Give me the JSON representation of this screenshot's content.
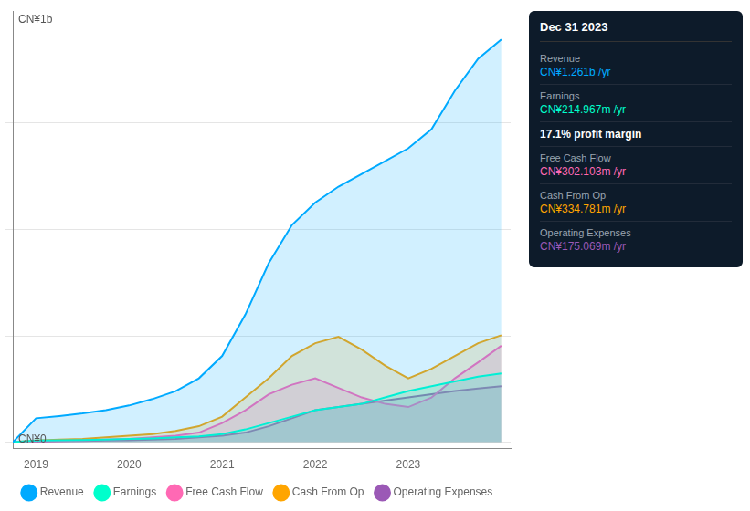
{
  "chart_data": {
    "type": "area",
    "x": [
      2018.75,
      2019.0,
      2019.25,
      2019.5,
      2019.75,
      2020.0,
      2020.25,
      2020.5,
      2020.75,
      2021.0,
      2021.25,
      2021.5,
      2021.75,
      2022.0,
      2022.25,
      2022.5,
      2022.75,
      2023.0,
      2023.25,
      2023.5,
      2023.75,
      2024.0
    ],
    "series": [
      {
        "name": "Revenue",
        "color": "#00aaff",
        "values": [
          0.0,
          0.075,
          0.082,
          0.09,
          0.1,
          0.115,
          0.135,
          0.16,
          0.2,
          0.27,
          0.4,
          0.56,
          0.68,
          0.75,
          0.8,
          0.84,
          0.88,
          0.92,
          0.98,
          1.1,
          1.2,
          1.261
        ]
      },
      {
        "name": "Earnings",
        "color": "#00ffcc",
        "values": [
          0.0,
          0.005,
          0.006,
          0.007,
          0.008,
          0.01,
          0.012,
          0.015,
          0.018,
          0.025,
          0.04,
          0.06,
          0.08,
          0.1,
          0.11,
          0.12,
          0.14,
          0.16,
          0.175,
          0.19,
          0.205,
          0.215
        ]
      },
      {
        "name": "Free Cash Flow",
        "color": "#ff69b4",
        "values": [
          0.0,
          0.003,
          0.004,
          0.005,
          0.008,
          0.01,
          0.015,
          0.02,
          0.03,
          0.06,
          0.1,
          0.15,
          0.18,
          0.2,
          0.17,
          0.14,
          0.12,
          0.11,
          0.14,
          0.2,
          0.25,
          0.302
        ]
      },
      {
        "name": "Cash From Op",
        "color": "#ffa500",
        "values": [
          0.0,
          0.005,
          0.008,
          0.01,
          0.015,
          0.02,
          0.025,
          0.035,
          0.05,
          0.08,
          0.14,
          0.2,
          0.27,
          0.31,
          0.33,
          0.29,
          0.24,
          0.2,
          0.23,
          0.27,
          0.31,
          0.335
        ]
      },
      {
        "name": "Operating Expenses",
        "color": "#9b59b6",
        "values": [
          0.0,
          0.002,
          0.003,
          0.004,
          0.005,
          0.006,
          0.008,
          0.01,
          0.015,
          0.02,
          0.03,
          0.05,
          0.075,
          0.1,
          0.11,
          0.12,
          0.13,
          0.14,
          0.15,
          0.16,
          0.168,
          0.175
        ]
      }
    ],
    "xlim": [
      2018.75,
      2024.1
    ],
    "xticks": [
      2019,
      2020,
      2021,
      2022,
      2023
    ],
    "ylim": [
      -0.02,
      1.35
    ],
    "yticks": [
      0.0,
      0.333,
      0.667,
      1.0
    ],
    "grid": true,
    "tick_labels": "x",
    "legend": "bottom",
    "annotations": [
      "CN¥1b",
      "CN¥0"
    ],
    "info_box": {
      "title": "Dec 31 2023",
      "rows": [
        {
          "label": "Revenue",
          "value": "CN¥1.261b /yr",
          "color": "#00aaff"
        },
        {
          "label": "Earnings",
          "value": "CN¥214.967m /yr",
          "color": "#00ffcc"
        },
        {
          "value": "17.1% profit margin",
          "color": "#ffffff"
        },
        {
          "label": "Free Cash Flow",
          "value": "CN¥302.103m /yr",
          "color": "#ff69b4"
        },
        {
          "label": "Cash From Op",
          "value": "CN¥334.781m /yr",
          "color": "#ffa500"
        },
        {
          "label": "Operating Expenses",
          "value": "CN¥175.069m /yr",
          "color": "#9b59b6"
        }
      ]
    }
  }
}
